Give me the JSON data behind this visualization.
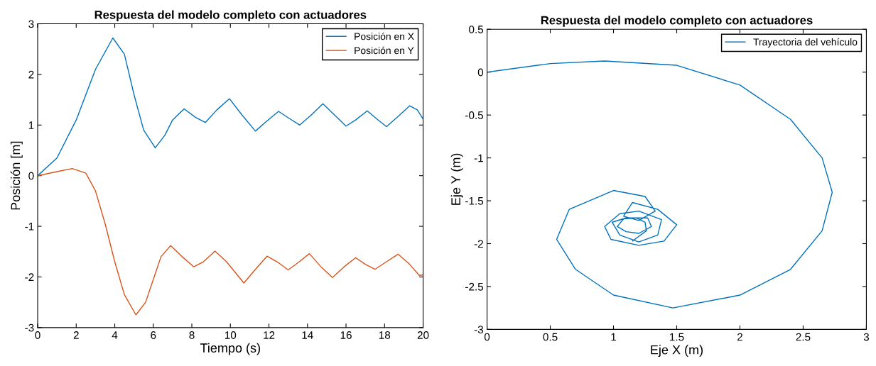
{
  "chart_data": [
    {
      "type": "line",
      "title": "Respuesta del modelo completo con actuadores",
      "xlabel": "Tiempo (s)",
      "ylabel": "Posición [m]",
      "xlim": [
        0,
        20
      ],
      "ylim": [
        -3,
        3
      ],
      "xticks": [
        0,
        2,
        4,
        6,
        8,
        10,
        12,
        14,
        16,
        18,
        20
      ],
      "yticks": [
        -3,
        -2,
        -1,
        0,
        1,
        2,
        3
      ],
      "grid": false,
      "legend": "top right",
      "series": [
        {
          "name": "Posición en X",
          "color": "#0072bd",
          "x": [
            0,
            1,
            2,
            3,
            3.9,
            4.5,
            5,
            5.5,
            6.1,
            6.6,
            7,
            7.6,
            8.2,
            8.7,
            9.3,
            9.95,
            10.6,
            11.3,
            11.8,
            12.5,
            13.1,
            13.6,
            14.2,
            14.8,
            15.4,
            16,
            16.5,
            17.1,
            17.6,
            18.1,
            18.7,
            19.3,
            19.7,
            20
          ],
          "values": [
            0,
            0.35,
            1.1,
            2.1,
            2.72,
            2.4,
            1.6,
            0.9,
            0.55,
            0.8,
            1.1,
            1.32,
            1.15,
            1.05,
            1.3,
            1.52,
            1.2,
            0.88,
            1.05,
            1.27,
            1.12,
            1.0,
            1.2,
            1.42,
            1.2,
            0.98,
            1.1,
            1.28,
            1.12,
            0.97,
            1.17,
            1.38,
            1.3,
            1.12
          ]
        },
        {
          "name": "Posición en Y",
          "color": "#d95319",
          "x": [
            0,
            1,
            1.8,
            2.5,
            3,
            3.5,
            4,
            4.5,
            5.1,
            5.6,
            6,
            6.4,
            6.9,
            7.5,
            8.1,
            8.6,
            9.2,
            9.8,
            10.7,
            11.3,
            11.9,
            12.5,
            13,
            13.5,
            14.1,
            14.7,
            15.3,
            15.9,
            16.5,
            17,
            17.5,
            18.1,
            18.7,
            19.3,
            19.8,
            20
          ],
          "values": [
            0,
            0.08,
            0.14,
            0.05,
            -0.3,
            -0.95,
            -1.7,
            -2.35,
            -2.75,
            -2.5,
            -2.05,
            -1.6,
            -1.38,
            -1.6,
            -1.8,
            -1.7,
            -1.49,
            -1.7,
            -2.12,
            -1.85,
            -1.59,
            -1.72,
            -1.86,
            -1.72,
            -1.54,
            -1.8,
            -2.01,
            -1.8,
            -1.62,
            -1.75,
            -1.85,
            -1.7,
            -1.55,
            -1.75,
            -1.97,
            -1.96
          ]
        }
      ]
    },
    {
      "type": "line",
      "title": "Respuesta del modelo completo con actuadores",
      "xlabel": "Eje X (m)",
      "ylabel": "Eje Y (m)",
      "xlim": [
        0,
        3
      ],
      "ylim": [
        -3,
        0.5
      ],
      "xticks": [
        0,
        0.5,
        1,
        1.5,
        2,
        2.5,
        3
      ],
      "yticks": [
        -3,
        -2.5,
        -2,
        -1.5,
        -1,
        -0.5,
        0,
        0.5
      ],
      "grid": false,
      "legend": "top right",
      "series": [
        {
          "name": "Trayectoria del vehículo",
          "color": "#0072bd",
          "x": [
            0,
            0.5,
            0.93,
            1.5,
            2.0,
            2.4,
            2.65,
            2.73,
            2.65,
            2.4,
            2.0,
            1.47,
            1.0,
            0.7,
            0.55,
            0.65,
            1.0,
            1.25,
            1.33,
            1.2,
            1.08,
            1.15,
            1.35,
            1.5,
            1.4,
            1.2,
            0.98,
            0.93,
            1.05,
            1.2,
            1.38,
            1.35,
            1.2,
            1.05,
            0.99,
            1.1,
            1.27,
            1.3,
            1.2,
            1.1,
            1.03,
            1.08,
            1.18,
            1.25,
            1.26,
            1.15
          ],
          "values": [
            0,
            0.1,
            0.13,
            0.08,
            -0.15,
            -0.55,
            -1.0,
            -1.4,
            -1.85,
            -2.3,
            -2.6,
            -2.75,
            -2.6,
            -2.3,
            -1.95,
            -1.6,
            -1.38,
            -1.45,
            -1.62,
            -1.73,
            -1.68,
            -1.52,
            -1.6,
            -1.78,
            -1.97,
            -2.02,
            -1.95,
            -1.8,
            -1.65,
            -1.62,
            -1.72,
            -1.9,
            -1.98,
            -1.9,
            -1.75,
            -1.7,
            -1.7,
            -1.8,
            -1.88,
            -1.86,
            -1.8,
            -1.71,
            -1.7,
            -1.75,
            -1.85,
            -1.97
          ]
        }
      ]
    }
  ]
}
